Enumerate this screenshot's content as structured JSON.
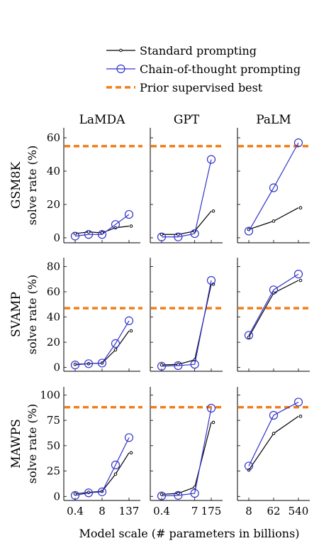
{
  "legend": {
    "placement": "top-center",
    "items": [
      {
        "label": "Standard prompting",
        "key": "std",
        "color": "#000000",
        "marker": "small-dot"
      },
      {
        "label": "Chain-of-thought prompting",
        "key": "cot",
        "color": "#3333cc",
        "marker": "open-circle"
      },
      {
        "label": "Prior supervised best",
        "key": "prior",
        "color": "#f07e1a",
        "marker": "dashed-line"
      }
    ]
  },
  "column_titles": [
    "LaMDA",
    "GPT",
    "PaLM"
  ],
  "row_titles": [
    {
      "name": "GSM8K",
      "ylabel": "solve rate (%)"
    },
    {
      "name": "SVAMP",
      "ylabel": "solve rate (%)"
    },
    {
      "name": "MAWPS",
      "ylabel": "solve rate (%)"
    }
  ],
  "xlabel": "Model scale (# parameters in billions)",
  "colors": {
    "std": "#000000",
    "cot": "#3333cc",
    "prior": "#f07e1a"
  },
  "chart_data": [
    {
      "type": "line",
      "row": 0,
      "col": 0,
      "model": "LaMDA",
      "dataset": "GSM8K",
      "x_ticks": [
        "0.4",
        "8",
        "137"
      ],
      "x_positions": [
        0,
        1,
        2,
        3,
        4
      ],
      "x_tick_positions": [
        0,
        2,
        4
      ],
      "ylim": [
        -3,
        66
      ],
      "y_ticks": [
        0,
        20,
        40,
        60
      ],
      "prior_best": 55,
      "series": [
        {
          "key": "std",
          "values": [
            2.5,
            3.5,
            3,
            6,
            7
          ]
        },
        {
          "key": "cot",
          "values": [
            1,
            2,
            2,
            8,
            14
          ]
        }
      ]
    },
    {
      "type": "line",
      "row": 0,
      "col": 1,
      "model": "GPT",
      "dataset": "GSM8K",
      "x_ticks": [
        "0.4",
        "7",
        "175"
      ],
      "x_positions": [
        0,
        1,
        2,
        3
      ],
      "x_tick_positions": [
        0,
        2,
        3
      ],
      "ylim": [
        -3,
        66
      ],
      "y_ticks": [
        0,
        20,
        40,
        60
      ],
      "prior_best": 55,
      "series": [
        {
          "key": "std",
          "values": [
            2,
            2,
            4,
            16
          ]
        },
        {
          "key": "cot",
          "values": [
            0.5,
            0.5,
            2.5,
            47
          ]
        }
      ]
    },
    {
      "type": "line",
      "row": 0,
      "col": 2,
      "model": "PaLM",
      "dataset": "GSM8K",
      "x_ticks": [
        "8",
        "62",
        "540"
      ],
      "x_positions": [
        0,
        1,
        2
      ],
      "x_tick_positions": [
        0,
        1,
        2
      ],
      "ylim": [
        -3,
        66
      ],
      "y_ticks": [
        0,
        20,
        40,
        60
      ],
      "prior_best": 55,
      "series": [
        {
          "key": "std",
          "values": [
            5,
            10,
            18
          ]
        },
        {
          "key": "cot",
          "values": [
            4,
            30,
            57
          ]
        }
      ]
    },
    {
      "type": "line",
      "row": 1,
      "col": 0,
      "model": "LaMDA",
      "dataset": "SVAMP",
      "x_ticks": [
        "0.4",
        "8",
        "137"
      ],
      "x_positions": [
        0,
        1,
        2,
        3,
        4
      ],
      "x_tick_positions": [
        0,
        2,
        4
      ],
      "ylim": [
        -3,
        87
      ],
      "y_ticks": [
        0,
        20,
        40,
        60,
        80
      ],
      "prior_best": 47,
      "series": [
        {
          "key": "std",
          "values": [
            2.5,
            3,
            3.5,
            14,
            29
          ]
        },
        {
          "key": "cot",
          "values": [
            2,
            3,
            3.5,
            19,
            37
          ]
        }
      ]
    },
    {
      "type": "line",
      "row": 1,
      "col": 1,
      "model": "GPT",
      "dataset": "SVAMP",
      "x_ticks": [
        "0.4",
        "7",
        "175"
      ],
      "x_positions": [
        0,
        1,
        2,
        3
      ],
      "x_tick_positions": [
        0,
        2,
        3
      ],
      "ylim": [
        -3,
        87
      ],
      "y_ticks": [
        0,
        20,
        40,
        60,
        80
      ],
      "prior_best": 47,
      "series": [
        {
          "key": "std",
          "values": [
            2,
            2.5,
            6,
            66
          ]
        },
        {
          "key": "cot",
          "values": [
            1,
            1.5,
            2.5,
            69
          ]
        }
      ]
    },
    {
      "type": "line",
      "row": 1,
      "col": 2,
      "model": "PaLM",
      "dataset": "SVAMP",
      "x_ticks": [
        "8",
        "62",
        "540"
      ],
      "x_positions": [
        0,
        1,
        2
      ],
      "x_tick_positions": [
        0,
        1,
        2
      ],
      "ylim": [
        -3,
        87
      ],
      "y_ticks": [
        0,
        20,
        40,
        60,
        80
      ],
      "prior_best": 47,
      "series": [
        {
          "key": "std",
          "values": [
            24,
            59,
            69
          ]
        },
        {
          "key": "cot",
          "values": [
            25.5,
            61.5,
            74
          ]
        }
      ]
    },
    {
      "type": "line",
      "row": 2,
      "col": 0,
      "model": "LaMDA",
      "dataset": "MAWPS",
      "x_ticks": [
        "0.4",
        "8",
        "137"
      ],
      "x_positions": [
        0,
        1,
        2,
        3,
        4
      ],
      "x_tick_positions": [
        0,
        2,
        4
      ],
      "ylim": [
        -4,
        108
      ],
      "y_ticks": [
        0,
        25,
        50,
        75,
        100
      ],
      "prior_best": 88,
      "series": [
        {
          "key": "std",
          "values": [
            2.5,
            4,
            5,
            22,
            43
          ]
        },
        {
          "key": "cot",
          "values": [
            1,
            3.5,
            4.5,
            31,
            58
          ]
        }
      ]
    },
    {
      "type": "line",
      "row": 2,
      "col": 1,
      "model": "GPT",
      "dataset": "MAWPS",
      "x_ticks": [
        "0.4",
        "7",
        "175"
      ],
      "x_positions": [
        0,
        1,
        2,
        3
      ],
      "x_tick_positions": [
        0,
        2,
        3
      ],
      "ylim": [
        -4,
        108
      ],
      "y_ticks": [
        0,
        25,
        50,
        75,
        100
      ],
      "prior_best": 88,
      "series": [
        {
          "key": "std",
          "values": [
            2,
            3,
            9,
            73
          ]
        },
        {
          "key": "cot",
          "values": [
            0.5,
            1,
            3,
            87
          ]
        }
      ]
    },
    {
      "type": "line",
      "row": 2,
      "col": 2,
      "model": "PaLM",
      "dataset": "MAWPS",
      "x_ticks": [
        "8",
        "62",
        "540"
      ],
      "x_positions": [
        0,
        1,
        2
      ],
      "x_tick_positions": [
        0,
        1,
        2
      ],
      "ylim": [
        -4,
        108
      ],
      "y_ticks": [
        0,
        25,
        50,
        75,
        100
      ],
      "prior_best": 88,
      "series": [
        {
          "key": "std",
          "values": [
            26,
            62,
            79
          ]
        },
        {
          "key": "cot",
          "values": [
            30,
            80,
            93
          ]
        }
      ]
    }
  ]
}
